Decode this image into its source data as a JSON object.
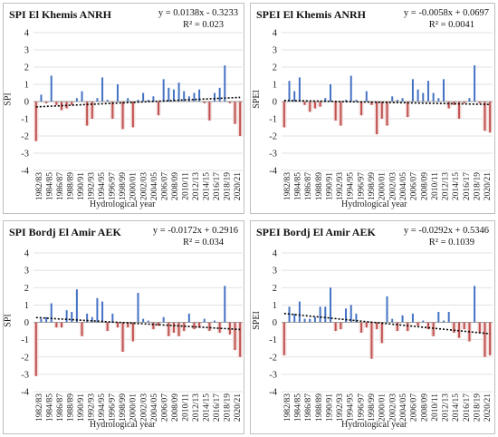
{
  "colors": {
    "positive": "#4472c4",
    "negative": "#c0504d",
    "negative_shade": "#f2dcdb",
    "trend": "#000000",
    "grid": "#d9d9d9"
  },
  "chart_data": [
    {
      "type": "bar",
      "title": "SPI El Khemis ANRH",
      "equation": "y = 0.0138x - 0.3233",
      "r2": "R² = 0.023",
      "xlabel": "Hydrological year",
      "ylabel": "SPI",
      "ylim": [
        -4,
        4
      ],
      "yticks": [
        "-4",
        "-3",
        "-2",
        "-1",
        "0",
        "1",
        "2",
        "3",
        "4"
      ],
      "xtick_labels": [
        "1982/83",
        "1984/85",
        "1986/87",
        "1988/89",
        "1990/91",
        "1992/93",
        "1994/95",
        "1996/97",
        "1998/99",
        "2000/01",
        "2002/03",
        "2004/05",
        "2006/07",
        "2008/09",
        "2010/11",
        "2012/13",
        "2014/15",
        "2016/17",
        "2018/19",
        "2020/21"
      ],
      "values": [
        -2.3,
        0.4,
        -0.1,
        1.5,
        -0.2,
        -0.5,
        -0.4,
        -0.2,
        0.2,
        0.6,
        -1.4,
        -1.0,
        0.2,
        1.4,
        0.1,
        -1.0,
        1.0,
        -1.6,
        0.2,
        -1.5,
        0.1,
        0.5,
        0.1,
        0.3,
        -0.8,
        1.3,
        0.8,
        0.7,
        1.1,
        0.6,
        0.3,
        0.5,
        0.7,
        -0.1,
        -1.1,
        0.5,
        0.8,
        2.1,
        -0.1,
        -1.3,
        -2.0
      ],
      "trend": {
        "slope": 0.0138,
        "intercept": -0.3233
      }
    },
    {
      "type": "bar",
      "title": "SPEI El Khemis ANRH",
      "equation": "y = -0.0058x + 0.0697",
      "r2": "R² = 0.0041",
      "xlabel": "Hydrological year",
      "ylabel": "SPEI",
      "ylim": [
        -4,
        4
      ],
      "yticks": [
        "-4",
        "-3",
        "-2",
        "-1",
        "0",
        "1",
        "2",
        "3",
        "4"
      ],
      "xtick_labels": [
        "1982/83",
        "1984/85",
        "1986/87",
        "1988/89",
        "1990/91",
        "1992/93",
        "1994/95",
        "1996/97",
        "1998/99",
        "2000/01",
        "2002/03",
        "2004/05",
        "2006/07",
        "2008/09",
        "2010/11",
        "2012/13",
        "2014/15",
        "2016/17",
        "2018/19",
        "2020/21"
      ],
      "values": [
        -1.5,
        1.2,
        0.6,
        1.4,
        -0.2,
        -0.6,
        -0.4,
        -0.3,
        0.2,
        1.0,
        -1.1,
        -1.4,
        0.1,
        1.5,
        0.1,
        -0.8,
        0.6,
        -0.2,
        -1.9,
        -1.0,
        -1.4,
        0.3,
        0.1,
        0.2,
        -0.9,
        1.3,
        0.7,
        0.5,
        1.2,
        0.5,
        0.2,
        1.3,
        -0.4,
        -0.2,
        -1.0,
        -0.1,
        0.2,
        2.1,
        -0.1,
        -1.7,
        -1.8
      ],
      "trend": {
        "slope": -0.0058,
        "intercept": 0.0697
      }
    },
    {
      "type": "bar",
      "title": "SPI Bordj El Amir AEK",
      "equation": "y = -0.0172x + 0.2916",
      "r2": "R² = 0.034",
      "xlabel": "Hydrological year",
      "ylabel": "SPI",
      "ylim": [
        -4,
        4
      ],
      "yticks": [
        "-4",
        "-3",
        "-2",
        "-1",
        "0",
        "1",
        "2",
        "3",
        "4"
      ],
      "xtick_labels": [
        "1982/83",
        "1984/85",
        "1986/87",
        "1988/89",
        "1990/91",
        "1992/93",
        "1994/95",
        "1996/97",
        "1998/99",
        "2000/01",
        "2002/03",
        "2004/05",
        "2006/07",
        "2008/09",
        "2010/11",
        "2012/13",
        "2014/15",
        "2016/17",
        "2018/19",
        "2020/21"
      ],
      "values": [
        -3.1,
        0.2,
        0.3,
        1.1,
        -0.3,
        -0.3,
        0.7,
        0.6,
        1.9,
        -0.8,
        0.5,
        0.3,
        1.4,
        1.2,
        -0.5,
        0.5,
        -0.3,
        -1.7,
        -0.3,
        -1.1,
        1.7,
        0.2,
        0.1,
        -0.4,
        -0.2,
        0.3,
        -0.8,
        -0.6,
        -0.8,
        -0.5,
        0.5,
        -0.4,
        -0.3,
        0.2,
        -0.5,
        0.1,
        -0.6,
        2.1,
        -0.7,
        -1.6,
        -2.0
      ],
      "trend": {
        "slope": -0.0172,
        "intercept": 0.2916
      }
    },
    {
      "type": "bar",
      "title": "SPEI Bordj El Amir AEK",
      "equation": "y = -0.0292x + 0.5346",
      "r2": "R² = 0.1039",
      "xlabel": "Hydrological year",
      "ylabel": "SPEI",
      "ylim": [
        -4,
        4
      ],
      "yticks": [
        "-4",
        "-3",
        "-2",
        "-1",
        "0",
        "1",
        "2",
        "3",
        "4"
      ],
      "xtick_labels": [
        "1982/83",
        "1984/85",
        "1986/87",
        "1988/89",
        "1990/91",
        "1992/93",
        "1994/95",
        "1996/97",
        "1998/99",
        "2000/01",
        "2002/03",
        "2004/05",
        "2006/07",
        "2008/09",
        "2010/11",
        "2012/13",
        "2014/15",
        "2016/17",
        "2018/19",
        "2020/21"
      ],
      "values": [
        -1.9,
        0.9,
        0.5,
        1.2,
        0.2,
        0.2,
        0.3,
        0.9,
        0.9,
        2.0,
        -0.5,
        -0.4,
        0.8,
        1.0,
        0.5,
        -0.6,
        -0.3,
        -2.1,
        -0.4,
        -1.2,
        1.5,
        0.2,
        -0.5,
        0.4,
        -0.5,
        0.5,
        -0.2,
        0.1,
        -0.4,
        -0.8,
        0.6,
        0.1,
        0.6,
        -0.6,
        -0.9,
        -0.4,
        -1.1,
        2.1,
        -0.6,
        -2.0,
        -1.9
      ]
    }
  ]
}
